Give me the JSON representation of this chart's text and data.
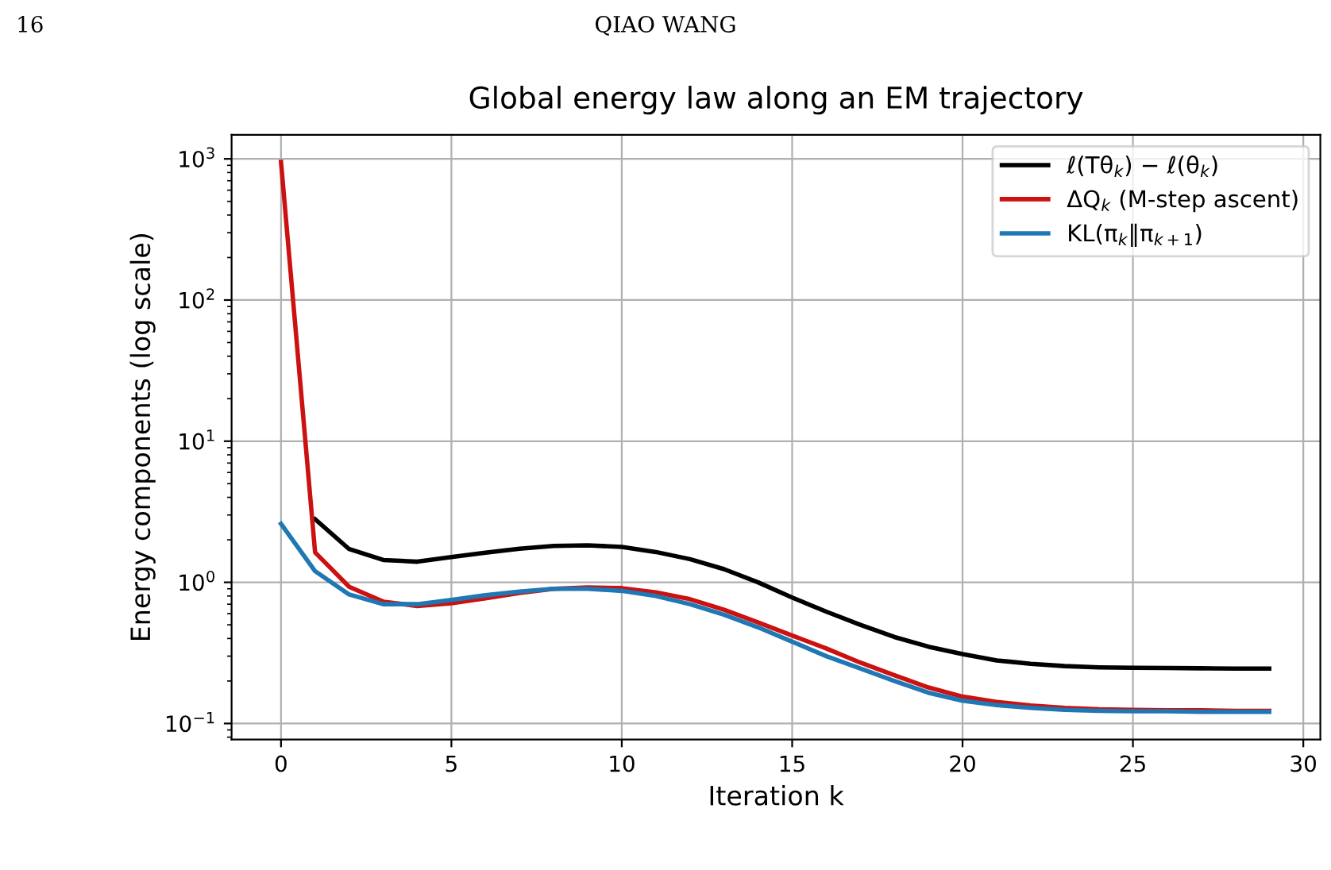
{
  "chart_data": {
    "type": "line",
    "title": "Global energy law along an EM trajectory",
    "xlabel": "Iteration k",
    "ylabel": "Energy components (log scale)",
    "annotations": [
      "16",
      "QIAO WANG"
    ],
    "x": [
      0,
      1,
      2,
      3,
      4,
      5,
      6,
      7,
      8,
      9,
      10,
      11,
      12,
      13,
      14,
      15,
      16,
      17,
      18,
      19,
      20,
      21,
      22,
      23,
      24,
      25,
      26,
      27,
      28,
      29
    ],
    "series": [
      {
        "name": "ℓ(Tθ$_{k}$) − ℓ(θ$_{k}$)",
        "color": "#000000",
        "values": [
          null,
          2.8,
          1.72,
          1.44,
          1.4,
          1.51,
          1.62,
          1.73,
          1.81,
          1.83,
          1.78,
          1.64,
          1.46,
          1.24,
          1.0,
          0.78,
          0.62,
          0.5,
          0.41,
          0.35,
          0.31,
          0.28,
          0.265,
          0.255,
          0.25,
          0.248,
          0.247,
          0.246,
          0.245,
          0.245
        ]
      },
      {
        "name": "ΔQ$_{k}$ (M-step ascent)",
        "color": "#cc1111",
        "values": [
          950,
          1.63,
          0.93,
          0.73,
          0.68,
          0.71,
          0.77,
          0.84,
          0.9,
          0.92,
          0.91,
          0.85,
          0.76,
          0.64,
          0.52,
          0.42,
          0.34,
          0.27,
          0.22,
          0.18,
          0.155,
          0.142,
          0.134,
          0.129,
          0.126,
          0.125,
          0.124,
          0.124,
          0.123,
          0.123
        ]
      },
      {
        "name": "KL(π$_{k}$‖π$_{k+1}$)",
        "color": "#1f77b4",
        "values": [
          2.6,
          1.2,
          0.82,
          0.7,
          0.7,
          0.75,
          0.81,
          0.86,
          0.9,
          0.9,
          0.87,
          0.8,
          0.7,
          0.59,
          0.48,
          0.38,
          0.3,
          0.245,
          0.2,
          0.165,
          0.145,
          0.135,
          0.129,
          0.125,
          0.123,
          0.122,
          0.122,
          0.121,
          0.121,
          0.121
        ]
      }
    ],
    "log": "y",
    "xlim": [
      -1.45,
      30.5
    ],
    "ylim": [
      0.077,
      1480
    ],
    "xticks": [
      0,
      5,
      10,
      15,
      20,
      25,
      30
    ],
    "yticks": [
      {
        "value": 0.1,
        "label": "10$^{−1}$"
      },
      {
        "value": 1,
        "label": "10$^{0}$"
      },
      {
        "value": 10,
        "label": "10$^{1}$"
      },
      {
        "value": 100,
        "label": "10$^{2}$"
      },
      {
        "value": 1000,
        "label": "10$^{3}$"
      }
    ],
    "grid": true,
    "legend": "top right",
    "line_style": "solid",
    "marker": "none"
  }
}
